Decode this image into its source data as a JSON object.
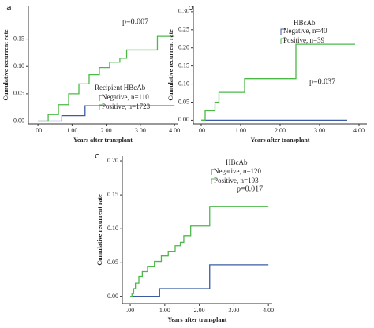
{
  "chart_data": [
    {
      "type": "line",
      "step": "post",
      "panel": "a",
      "annotation": "p=0.007",
      "legend_title": "Recipient HBcAb",
      "xlabel": "Years after transplant",
      "ylabel": "Cumulative recurrent rate",
      "xlim": [
        -0.28,
        4.09
      ],
      "ylim": [
        -0.005,
        0.21
      ],
      "xticks": [
        {
          "value": 0,
          "label": ".00"
        },
        {
          "value": 1,
          "label": "1.00"
        },
        {
          "value": 2,
          "label": "2.00"
        },
        {
          "value": 3,
          "label": "3.00"
        },
        {
          "value": 4,
          "label": "4.00"
        }
      ],
      "yticks": [
        {
          "value": 0,
          "label": "0.00"
        },
        {
          "value": 0.05,
          "label": "0.05"
        },
        {
          "value": 0.1,
          "label": "0.10"
        },
        {
          "value": 0.15,
          "label": "0.15"
        }
      ],
      "series": [
        {
          "name": "Negative, n=110",
          "color": "#3b5ba6",
          "x": [
            0,
            0.7,
            1.38,
            4.0
          ],
          "values": [
            0,
            0.01,
            0.028,
            0.028
          ]
        },
        {
          "name": "Positive, n=1723",
          "color": "#4cb848",
          "x": [
            0,
            0.3,
            0.6,
            0.9,
            1.2,
            1.5,
            1.8,
            2.1,
            2.4,
            2.6,
            3.5,
            4.0
          ],
          "values": [
            0,
            0.012,
            0.03,
            0.05,
            0.068,
            0.085,
            0.098,
            0.108,
            0.115,
            0.13,
            0.155,
            0.155
          ]
        }
      ]
    },
    {
      "type": "line",
      "step": "post",
      "panel": "b",
      "annotation": "p=0.037",
      "legend_title": "HBcAb",
      "xlabel": "Years after transplant",
      "ylabel": "Cumulative recurrent rate",
      "xlim": [
        -0.2,
        4.2
      ],
      "ylim": [
        -0.01,
        0.315
      ],
      "xticks": [
        {
          "value": 0,
          "label": ".00"
        },
        {
          "value": 1,
          "label": "1.00"
        },
        {
          "value": 2,
          "label": "2.00"
        },
        {
          "value": 3,
          "label": "3.00"
        },
        {
          "value": 4,
          "label": "4.00"
        }
      ],
      "yticks": [
        {
          "value": 0,
          "label": "0.00"
        },
        {
          "value": 0.05,
          "label": "0.05"
        },
        {
          "value": 0.1,
          "label": "0.10"
        },
        {
          "value": 0.15,
          "label": "0.15"
        },
        {
          "value": 0.2,
          "label": "0.20"
        },
        {
          "value": 0.25,
          "label": "0.25"
        },
        {
          "value": 0.3,
          "label": "0.30"
        }
      ],
      "series": [
        {
          "name": "Negative, n=40",
          "color": "#3b5ba6",
          "x": [
            0,
            3.7
          ],
          "values": [
            0,
            0
          ]
        },
        {
          "name": "Positive, n=39",
          "color": "#4cb848",
          "x": [
            0,
            0.1,
            0.35,
            0.45,
            1.1,
            2.4,
            3.9
          ],
          "values": [
            0,
            0.026,
            0.05,
            0.077,
            0.115,
            0.21,
            0.21
          ]
        }
      ]
    },
    {
      "type": "line",
      "step": "post",
      "panel": "c",
      "annotation": "p=0.017",
      "legend_title": "HBcAb",
      "xlabel": "Years after transplant",
      "ylabel": "Cumulative recurrent rate",
      "xlim": [
        -0.23,
        4.11
      ],
      "ylim": [
        -0.01,
        0.207
      ],
      "xticks": [
        {
          "value": 0,
          "label": ".00"
        },
        {
          "value": 1,
          "label": "1.00"
        },
        {
          "value": 2,
          "label": "2.00"
        },
        {
          "value": 3,
          "label": "3.00"
        },
        {
          "value": 4,
          "label": "4.00"
        }
      ],
      "yticks": [
        {
          "value": 0,
          "label": "0.00"
        },
        {
          "value": 0.05,
          "label": "0.05"
        },
        {
          "value": 0.1,
          "label": "0.10"
        },
        {
          "value": 0.15,
          "label": "0.15"
        },
        {
          "value": 0.2,
          "label": "0.20"
        }
      ],
      "series": [
        {
          "name": "Negative, n=120",
          "color": "#3b5ba6",
          "x": [
            0,
            0.85,
            2.3,
            4.0
          ],
          "values": [
            0,
            0.012,
            0.047,
            0.047
          ]
        },
        {
          "name": "Positive, n=193",
          "color": "#4cb848",
          "x": [
            0,
            0.05,
            0.1,
            0.15,
            0.25,
            0.35,
            0.5,
            0.7,
            0.9,
            1.1,
            1.3,
            1.45,
            1.55,
            1.75,
            2.3,
            4.0
          ],
          "values": [
            0,
            0.005,
            0.012,
            0.02,
            0.03,
            0.037,
            0.045,
            0.052,
            0.06,
            0.067,
            0.075,
            0.08,
            0.09,
            0.104,
            0.133,
            0.133
          ]
        }
      ]
    }
  ]
}
